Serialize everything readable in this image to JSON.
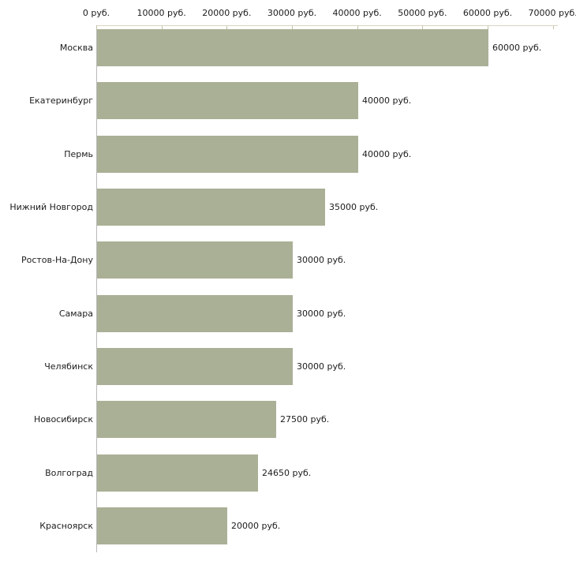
{
  "chart_data": {
    "type": "bar",
    "orientation": "horizontal",
    "title": "",
    "xlabel": "",
    "ylabel": "",
    "unit": "руб.",
    "grid": false,
    "legend": null,
    "categories": [
      "Москва",
      "Екатеринбург",
      "Пермь",
      "Нижний Новгород",
      "Ростов-На-Дону",
      "Самара",
      "Челябинск",
      "Новосибирск",
      "Волгоград",
      "Красноярск"
    ],
    "values": [
      60000,
      40000,
      40000,
      35000,
      30000,
      30000,
      30000,
      27500,
      24650,
      20000
    ],
    "value_labels": [
      "60000 руб.",
      "40000 руб.",
      "40000 руб.",
      "35000 руб.",
      "30000 руб.",
      "30000 руб.",
      "30000 руб.",
      "27500 руб.",
      "24650 руб.",
      "20000 руб."
    ],
    "x_ticks": [
      0,
      10000,
      20000,
      30000,
      40000,
      50000,
      60000,
      70000
    ],
    "x_tick_labels": [
      "0 руб.",
      "10000 руб.",
      "20000 руб.",
      "30000 руб.",
      "40000 руб.",
      "50000 руб.",
      "60000 руб.",
      "70000 руб."
    ],
    "xlim": [
      0,
      70000
    ],
    "colors": {
      "bar": "#aab096",
      "axis_line": "#d9d5c2",
      "tick": "#c3c0a2",
      "y_axis_line": "#b9b9b9",
      "text": "#1c1c1c",
      "background": "#ffffff"
    }
  }
}
